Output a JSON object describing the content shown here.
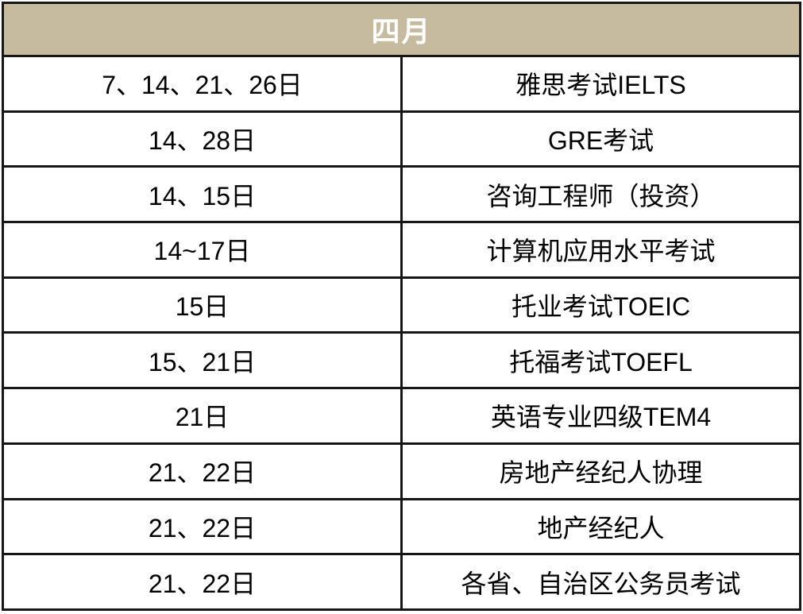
{
  "table": {
    "month_header": "四月",
    "rows": [
      {
        "dates": "7、14、21、26日",
        "exam": "雅思考试IELTS"
      },
      {
        "dates": "14、28日",
        "exam": "GRE考试"
      },
      {
        "dates": "14、15日",
        "exam": "咨询工程师（投资）"
      },
      {
        "dates": "14~17日",
        "exam": "计算机应用水平考试"
      },
      {
        "dates": "15日",
        "exam": "托业考试TOEIC"
      },
      {
        "dates": "15、21日",
        "exam": "托福考试TOEFL"
      },
      {
        "dates": "21日",
        "exam": "英语专业四级TEM4"
      },
      {
        "dates": "21、22日",
        "exam": "房地产经纪人协理"
      },
      {
        "dates": "21、22日",
        "exam": "地产经纪人"
      },
      {
        "dates": "21、22日",
        "exam": "各省、自治区公务员考试"
      }
    ]
  },
  "colors": {
    "header_background": "#c7bb9f",
    "header_text": "#ffffff",
    "border": "#161616",
    "cell_background": "#ffffff",
    "cell_text": "#000000"
  }
}
